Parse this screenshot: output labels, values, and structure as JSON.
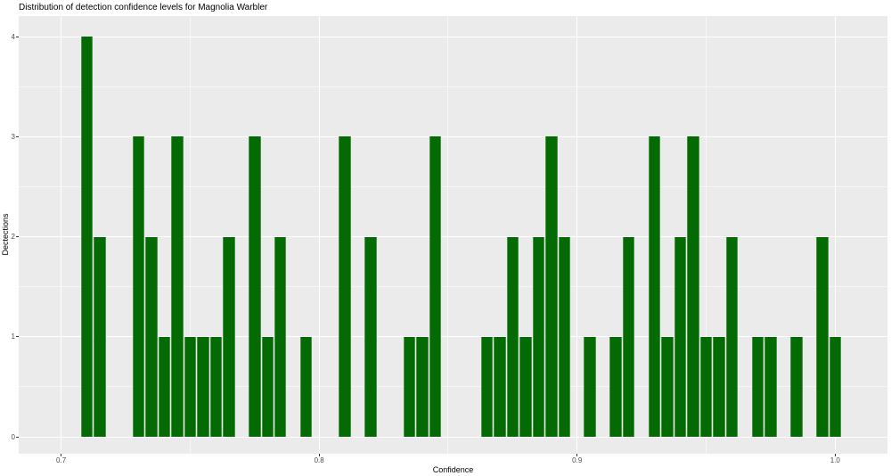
{
  "chart_data": {
    "type": "bar",
    "subtype": "histogram",
    "title": "Distribution of detection confidence levels for Magnolia Warbler",
    "xlabel": "Confidence",
    "ylabel": "Dectections",
    "xlim": [
      0.7,
      1.0
    ],
    "ylim": [
      0,
      4
    ],
    "x_ticks": [
      0.7,
      0.8,
      0.9,
      1.0
    ],
    "x_tick_labels": [
      "0.7",
      "0.8",
      "0.9",
      "1.0"
    ],
    "x_minor_ticks": [
      0.75,
      0.85,
      0.95
    ],
    "y_ticks": [
      0,
      1,
      2,
      3,
      4
    ],
    "y_tick_labels": [
      "0",
      "1",
      "2",
      "3",
      "4"
    ],
    "y_minor_ticks": [
      0.5,
      1.5,
      2.5,
      3.5
    ],
    "binwidth": 0.005,
    "bin_centers": [
      0.71,
      0.715,
      0.73,
      0.735,
      0.74,
      0.745,
      0.75,
      0.755,
      0.76,
      0.765,
      0.775,
      0.78,
      0.785,
      0.795,
      0.81,
      0.82,
      0.835,
      0.84,
      0.845,
      0.865,
      0.87,
      0.875,
      0.88,
      0.885,
      0.89,
      0.895,
      0.905,
      0.915,
      0.92,
      0.93,
      0.935,
      0.94,
      0.945,
      0.95,
      0.955,
      0.96,
      0.97,
      0.975,
      0.985,
      0.995,
      1.0
    ],
    "counts": [
      4,
      2,
      3,
      2,
      1,
      3,
      1,
      1,
      1,
      2,
      3,
      1,
      2,
      1,
      3,
      2,
      1,
      1,
      3,
      1,
      1,
      2,
      1,
      2,
      3,
      2,
      1,
      1,
      2,
      3,
      1,
      2,
      3,
      1,
      1,
      2,
      1,
      1,
      1,
      2,
      1
    ],
    "grid": true,
    "legend": "none",
    "bar_color": "#046a04",
    "panel_bg": "#ebebeb",
    "grid_color": "#ffffff",
    "tick_label_color": "#4d4d4d"
  }
}
